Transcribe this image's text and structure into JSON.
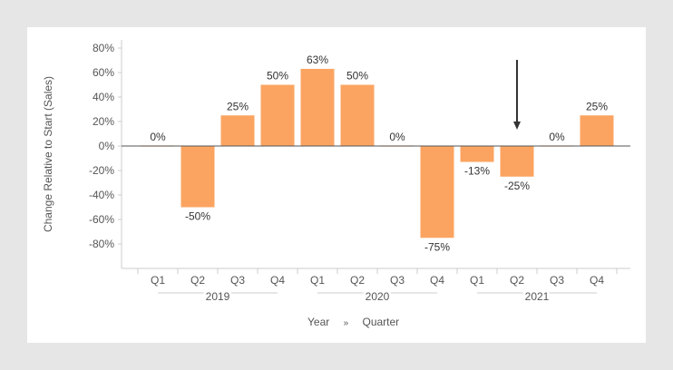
{
  "chart_data": {
    "type": "bar",
    "ylabel": "Change Relative to Start (Sales)",
    "xlabel_parts": [
      "Year",
      "»",
      "Quarter"
    ],
    "ylim": [
      -100,
      80
    ],
    "yticks": [
      "80%",
      "60%",
      "40%",
      "20%",
      "0%",
      "-20%",
      "-40%",
      "-60%",
      "-80%"
    ],
    "ytick_values": [
      80,
      60,
      40,
      20,
      0,
      -20,
      -40,
      -60,
      -80
    ],
    "categories": [
      "Q1",
      "Q2",
      "Q3",
      "Q4",
      "Q1",
      "Q2",
      "Q3",
      "Q4",
      "Q1",
      "Q2",
      "Q3",
      "Q4"
    ],
    "groups": [
      {
        "label": "2019",
        "count": 4
      },
      {
        "label": "2020",
        "count": 4
      },
      {
        "label": "2021",
        "count": 4
      }
    ],
    "values": [
      0,
      -50,
      25,
      50,
      63,
      50,
      0,
      -75,
      -13,
      -25,
      0,
      25
    ],
    "data_labels": [
      "0%",
      "-50%",
      "25%",
      "50%",
      "63%",
      "50%",
      "0%",
      "-75%",
      "-13%",
      "-25%",
      "0%",
      "25%"
    ],
    "bar_color": "#fba461",
    "annotation": {
      "type": "arrow",
      "category_index": 9
    }
  }
}
